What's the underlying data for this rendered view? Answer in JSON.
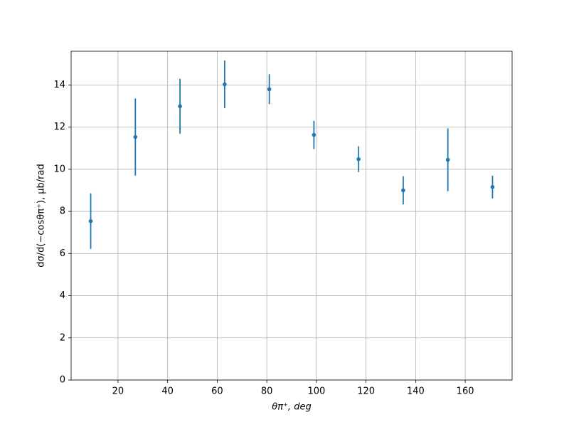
{
  "chart_data": {
    "type": "errorbar",
    "x_label": "θπ⁺, deg",
    "y_label": "dσ/d(−cosθπ⁺), μb/rad",
    "x": [
      9,
      27,
      45,
      63,
      81,
      99,
      117,
      135,
      153,
      171
    ],
    "series": [
      {
        "color": "#1f77b4",
        "values": [
          7.54,
          11.53,
          12.99,
          14.03,
          13.8,
          11.63,
          10.48,
          9.0,
          10.45,
          9.16
        ],
        "errors": [
          1.32,
          1.83,
          1.3,
          1.13,
          0.71,
          0.67,
          0.61,
          0.67,
          1.49,
          0.54
        ]
      }
    ],
    "xlim": [
      1.1,
      178.9
    ],
    "xticks": [
      20,
      40,
      60,
      80,
      100,
      120,
      140,
      160
    ],
    "ylim": [
      0,
      15.6
    ],
    "yticks": [
      0,
      2,
      4,
      6,
      8,
      10,
      12,
      14
    ],
    "grid": true
  }
}
